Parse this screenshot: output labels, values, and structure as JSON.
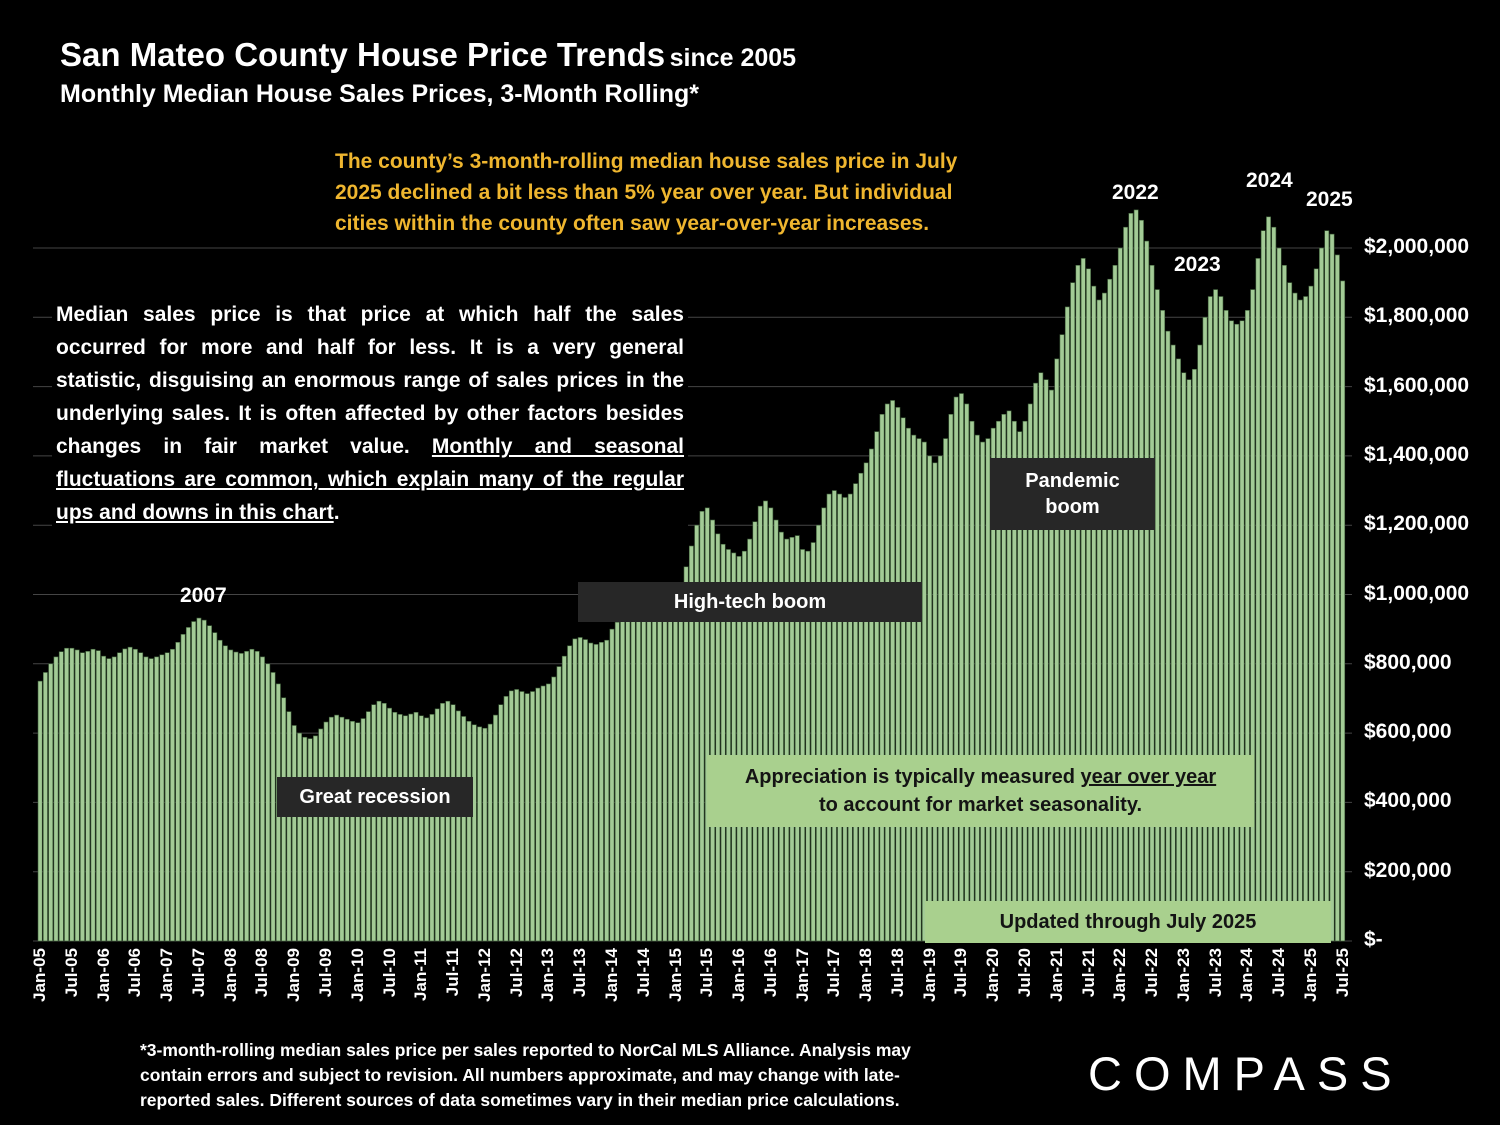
{
  "header": {
    "title": "San Mateo County House Price Trends",
    "title_suffix": "since 2005",
    "subtitle": "Monthly Median House Sales Prices, 3-Month Rolling*"
  },
  "callout": {
    "text": "The county’s 3-month-rolling median house sales price in July\n2025 declined a bit less than 5% year over year. But individual\ncities within the county often saw year-over-year increases."
  },
  "description": {
    "normal": "Median sales price is that price at which half the sales occurred for more and half for less. It is a very general statistic, disguising an enormous range of sales prices in the underlying sales. It is often affected by other factors besides changes in fair market value. ",
    "underlined": "Monthly and seasonal fluctuations are common, which explain many of the regular ups and downs in this chart",
    "tail": "."
  },
  "annotations": {
    "y2007": "2007",
    "y2022": "2022",
    "y2023": "2023",
    "y2024": "2024",
    "y2025": "2025",
    "high_tech": "High-tech boom",
    "pandemic_line1": "Pandemic",
    "pandemic_line2": "boom",
    "recession": "Great recession",
    "appreciation_pre": "Appreciation is typically measured ",
    "appreciation_underline": "year over year",
    "appreciation_line2": "to account for market seasonality.",
    "updated": "Updated through July 2025"
  },
  "footnote": "*3-month-rolling median sales price per sales reported to NorCal MLS Alliance. Analysis may\ncontain errors and subject to revision. All numbers approximate, and may change with late-\nreported sales. Different sources of data sometimes vary in their median price calculations.",
  "logo": "COMPASS",
  "colors": {
    "gold": "#efb62f",
    "greenbox": "#a9d08e",
    "darkbox": "#272727",
    "bar_fill": "#a3cb96",
    "bar_stroke": "#3f5f3a",
    "grid": "#454545"
  },
  "chart_data": {
    "type": "bar",
    "title": "San Mateo County Monthly Median House Sales Prices, 3-Month Rolling",
    "x_unit": "month",
    "x_start": "Jan-2005",
    "x_end": "Jul-2025",
    "values_unit": "USD thousands",
    "ylim_usd": [
      0,
      2100000
    ],
    "grid": "horizontal, every $200,000",
    "legend": "none",
    "x_tick_labels": [
      "Jan-05",
      "Jul-05",
      "Jan-06",
      "Jul-06",
      "Jan-07",
      "Jul-07",
      "Jan-08",
      "Jul-08",
      "Jan-09",
      "Jul-09",
      "Jan-10",
      "Jul-10",
      "Jan-11",
      "Jul-11",
      "Jan-12",
      "Jul-12",
      "Jan-13",
      "Jul-13",
      "Jan-14",
      "Jul-14",
      "Jan-15",
      "Jul-15",
      "Jan-16",
      "Jul-16",
      "Jan-17",
      "Jul-17",
      "Jan-18",
      "Jul-18",
      "Jan-19",
      "Jul-19",
      "Jan-20",
      "Jul-20",
      "Jan-21",
      "Jul-21",
      "Jan-22",
      "Jul-22",
      "Jan-23",
      "Jul-23",
      "Jan-24",
      "Jul-24",
      "Jan-25",
      "Jul-25"
    ],
    "y_tick_labels": [
      "$2,000,000",
      "$1,800,000",
      "$1,600,000",
      "$1,400,000",
      "$1,200,000",
      "$1,000,000",
      "$800,000",
      "$600,000",
      "$400,000",
      "$200,000",
      "$-"
    ],
    "y_tick_values_k": [
      2000,
      1800,
      1600,
      1400,
      1200,
      1000,
      800,
      600,
      400,
      200,
      0
    ],
    "values_k": [
      750,
      775,
      800,
      820,
      835,
      845,
      845,
      840,
      832,
      836,
      842,
      838,
      822,
      815,
      820,
      832,
      843,
      848,
      842,
      832,
      820,
      815,
      820,
      826,
      832,
      842,
      862,
      885,
      905,
      922,
      932,
      926,
      910,
      890,
      868,
      852,
      840,
      834,
      830,
      836,
      842,
      836,
      820,
      800,
      775,
      742,
      702,
      662,
      622,
      600,
      588,
      584,
      592,
      612,
      632,
      646,
      652,
      646,
      640,
      634,
      630,
      642,
      662,
      682,
      692,
      686,
      672,
      660,
      654,
      650,
      655,
      660,
      650,
      644,
      654,
      670,
      686,
      692,
      682,
      664,
      648,
      634,
      624,
      618,
      614,
      626,
      652,
      682,
      706,
      722,
      726,
      720,
      714,
      720,
      730,
      736,
      742,
      762,
      792,
      822,
      852,
      872,
      876,
      870,
      860,
      856,
      862,
      868,
      900,
      920,
      945,
      965,
      980,
      985,
      975,
      965,
      960,
      965,
      975,
      985,
      1000,
      1030,
      1080,
      1140,
      1200,
      1240,
      1250,
      1215,
      1175,
      1145,
      1130,
      1120,
      1110,
      1125,
      1160,
      1210,
      1255,
      1270,
      1250,
      1215,
      1180,
      1160,
      1165,
      1170,
      1130,
      1125,
      1150,
      1200,
      1250,
      1290,
      1300,
      1290,
      1280,
      1290,
      1320,
      1350,
      1380,
      1420,
      1470,
      1520,
      1550,
      1560,
      1540,
      1510,
      1480,
      1460,
      1450,
      1440,
      1400,
      1380,
      1400,
      1450,
      1520,
      1570,
      1580,
      1550,
      1500,
      1460,
      1440,
      1450,
      1480,
      1500,
      1520,
      1530,
      1500,
      1470,
      1500,
      1550,
      1610,
      1640,
      1620,
      1590,
      1680,
      1750,
      1830,
      1900,
      1950,
      1970,
      1940,
      1890,
      1850,
      1870,
      1910,
      1950,
      2000,
      2060,
      2100,
      2110,
      2080,
      2020,
      1950,
      1880,
      1820,
      1760,
      1720,
      1680,
      1640,
      1620,
      1650,
      1720,
      1800,
      1860,
      1880,
      1860,
      1820,
      1790,
      1780,
      1790,
      1820,
      1880,
      1970,
      2050,
      2090,
      2060,
      2000,
      1950,
      1900,
      1870,
      1850,
      1860,
      1890,
      1940,
      2000,
      2050,
      2040,
      1980,
      1905
    ]
  }
}
